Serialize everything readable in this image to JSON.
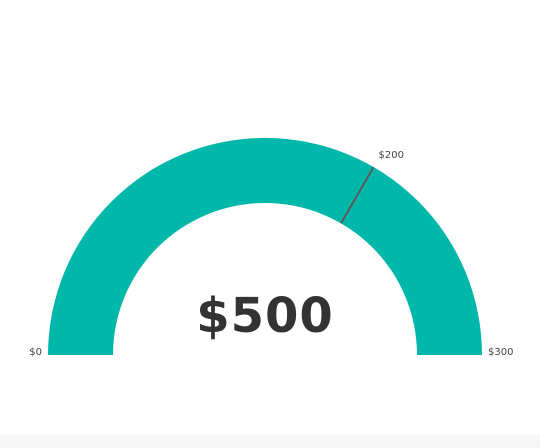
{
  "chart_data": {
    "type": "gauge",
    "value": 500,
    "value_label": "$500",
    "min": 0,
    "max": 300,
    "target": 200,
    "min_label": "$0",
    "max_label": "$300",
    "target_label": "$200",
    "fill_color": "#00b8aa",
    "target_color": "#5a5a5a",
    "value_text_color": "#333333"
  }
}
